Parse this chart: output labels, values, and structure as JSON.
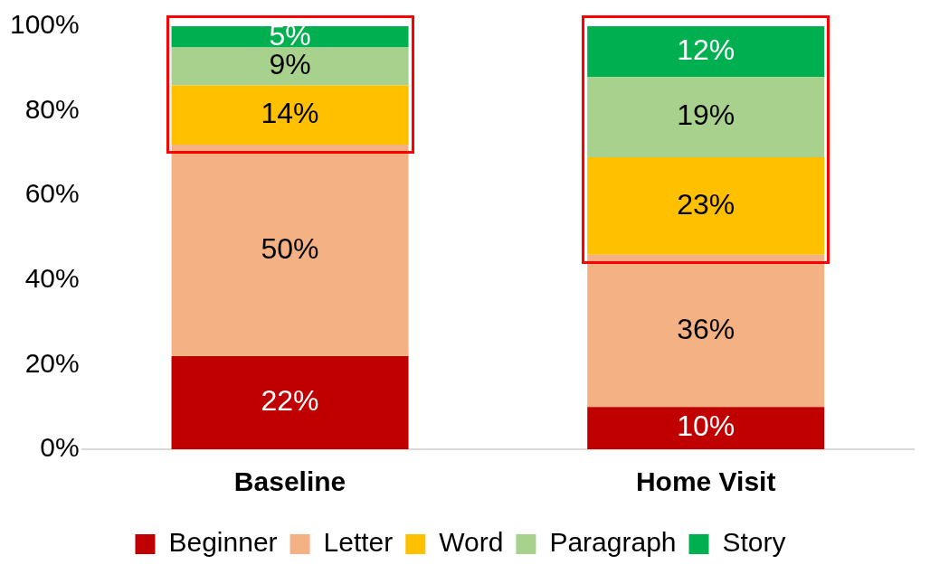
{
  "chart_data": {
    "type": "bar",
    "stacked": true,
    "categories": [
      "Baseline",
      "Home Visit"
    ],
    "series": [
      {
        "name": "Beginner",
        "color": "#c00000",
        "values": [
          22,
          10
        ],
        "value_labels": [
          "22%",
          "10%"
        ]
      },
      {
        "name": "Letter",
        "color": "#f4b183",
        "values": [
          50,
          36
        ],
        "value_labels": [
          "50%",
          "36%"
        ]
      },
      {
        "name": "Word",
        "color": "#ffc000",
        "values": [
          14,
          23
        ],
        "value_labels": [
          "14%",
          "23%"
        ]
      },
      {
        "name": "Paragraph",
        "color": "#a9d18e",
        "values": [
          9,
          19
        ],
        "value_labels": [
          "9%",
          "19%"
        ]
      },
      {
        "name": "Story",
        "color": "#00b050",
        "values": [
          5,
          12
        ],
        "value_labels": [
          "5%",
          "12%"
        ]
      }
    ],
    "ylim": [
      0,
      100
    ],
    "yticks": [
      {
        "value": 0,
        "label": "0%"
      },
      {
        "value": 20,
        "label": "20%"
      },
      {
        "value": 40,
        "label": "40%"
      },
      {
        "value": 60,
        "label": "60%"
      },
      {
        "value": 80,
        "label": "80%"
      },
      {
        "value": 100,
        "label": "100%"
      }
    ],
    "grid": false,
    "legend": "bottom"
  }
}
